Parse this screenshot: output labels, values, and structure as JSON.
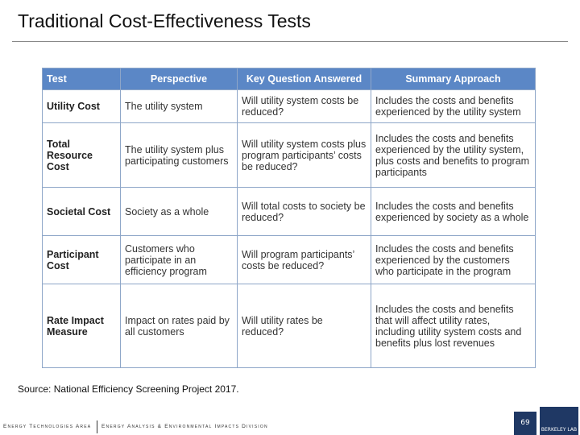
{
  "header": {
    "title": "Traditional Cost-Effectiveness Tests"
  },
  "table": {
    "columns": [
      "Test",
      "Perspective",
      "Key Question Answered",
      "Summary Approach"
    ],
    "rows": [
      [
        "Utility Cost",
        "The utility system",
        "Will utility system costs be reduced?",
        "Includes the costs and benefits experienced by the utility system"
      ],
      [
        "Total Resource Cost",
        "The utility system plus participating customers",
        "Will utility system costs plus program participants’ costs be reduced?",
        "Includes the costs and benefits experienced by the utility system, plus costs and benefits to program participants"
      ],
      [
        "Societal Cost",
        "Society as a whole",
        "Will total costs to society be reduced?",
        "Includes the costs and benefits experienced by society as a whole"
      ],
      [
        "Participant Cost",
        "Customers who participate in an efficiency program",
        "Will program participants’ costs be reduced?",
        "Includes the costs and benefits experienced by the customers who participate in the program"
      ],
      [
        "Rate Impact Measure",
        "Impact on rates paid by all customers",
        "Will utility rates be reduced?",
        "Includes the costs and benefits that will affect utility rates, including utility system costs and benefits plus lost revenues"
      ]
    ]
  },
  "source": "Source: National Efficiency Screening Project 2017.",
  "footer": {
    "area": "Energy Technologies Area",
    "division": "Energy Analysis & Environmental Impacts Division",
    "page": "69",
    "logo": "BERKELEY LAB"
  }
}
